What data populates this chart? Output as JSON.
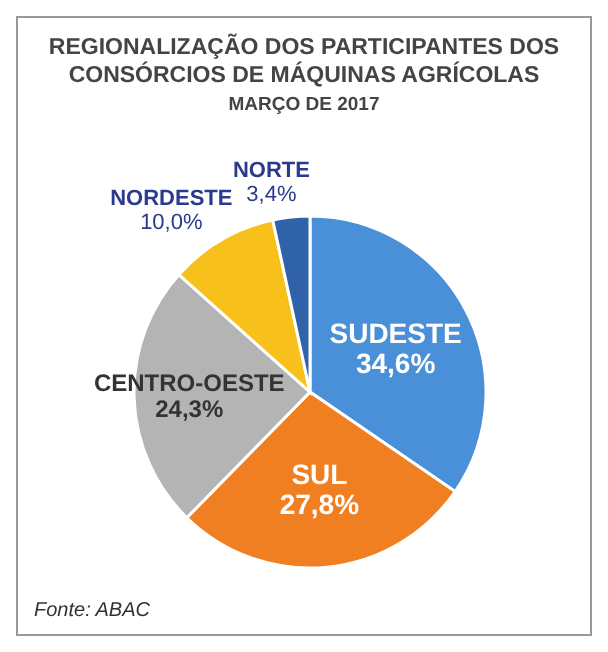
{
  "chart_data": {
    "type": "pie",
    "title": "REGIONALIZAÇÃO DOS PARTICIPANTES DOS CONSÓRCIOS DE MÁQUINAS AGRÍCOLAS",
    "subtitle": "MARÇO DE 2017",
    "categories": [
      "SUDESTE",
      "SUL",
      "CENTRO-OESTE",
      "NORDESTE",
      "NORTE"
    ],
    "values": [
      34.6,
      27.8,
      24.3,
      10.0,
      3.4
    ],
    "value_labels": [
      "34,6%",
      "27,8%",
      "24,3%",
      "10,0%",
      "3,4%"
    ],
    "colors": [
      "#4a90d9",
      "#f07f22",
      "#b4b4b4",
      "#f8c01a",
      "#2f62a8"
    ],
    "annotations": [
      "Fonte: ABAC"
    ]
  }
}
